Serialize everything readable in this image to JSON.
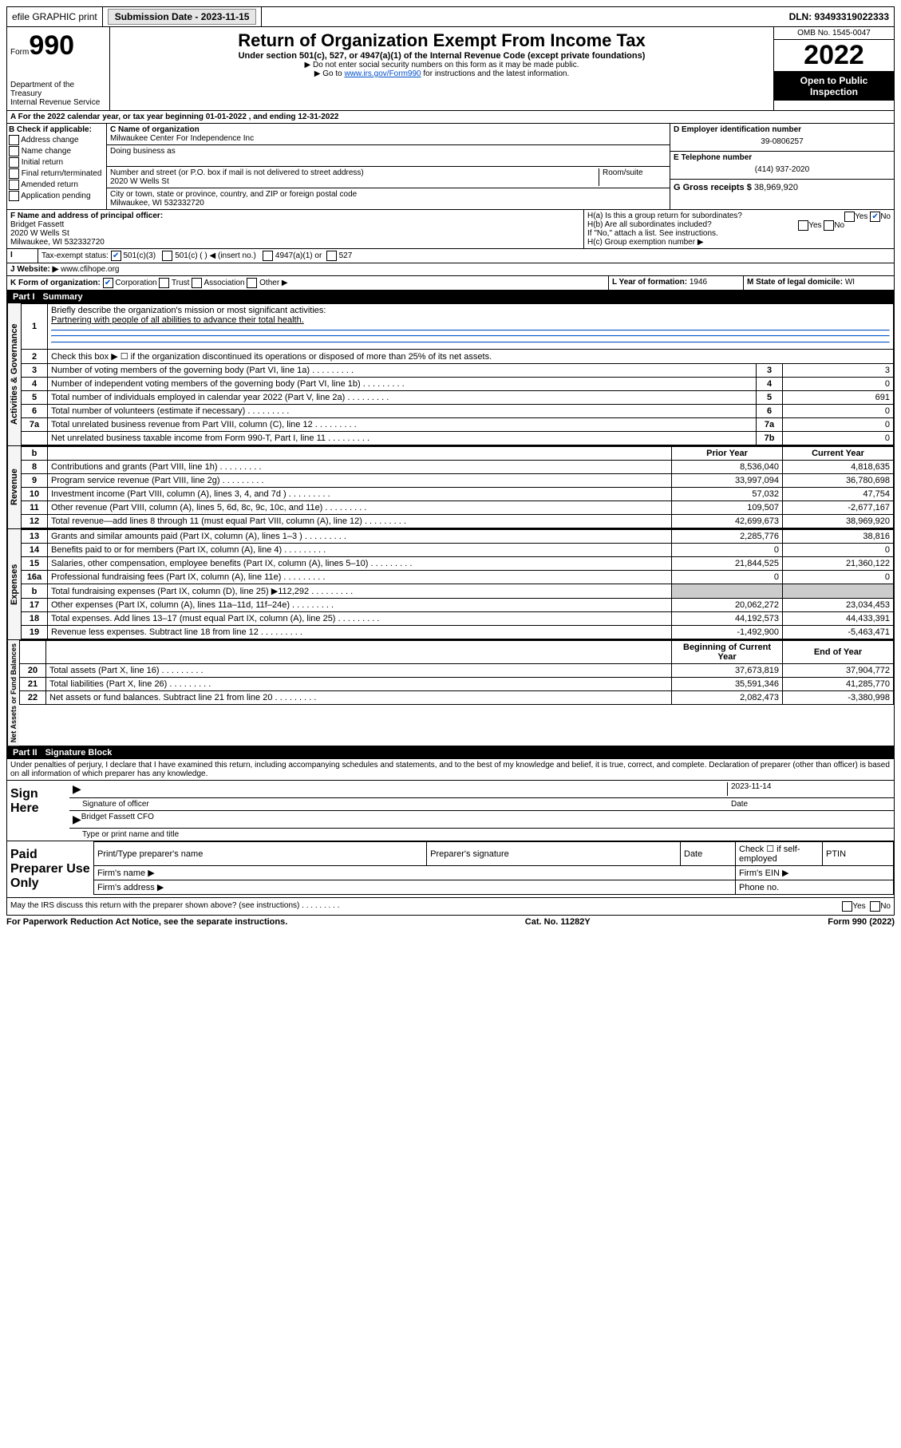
{
  "topbar": {
    "efile": "efile GRAPHIC print",
    "subdate_label": "Submission Date - 2023-11-15",
    "dln": "DLN: 93493319022333"
  },
  "header": {
    "form": "Form",
    "formno": "990",
    "dept": "Department of the Treasury",
    "irs": "Internal Revenue Service",
    "title": "Return of Organization Exempt From Income Tax",
    "subtitle": "Under section 501(c), 527, or 4947(a)(1) of the Internal Revenue Code (except private foundations)",
    "note1": "▶ Do not enter social security numbers on this form as it may be made public.",
    "note2_pre": "▶ Go to ",
    "note2_link": "www.irs.gov/Form990",
    "note2_post": " for instructions and the latest information.",
    "omb": "OMB No. 1545-0047",
    "year": "2022",
    "open": "Open to Public Inspection"
  },
  "sectionA": {
    "text": "A For the 2022 calendar year, or tax year beginning 01-01-2022    , and ending 12-31-2022"
  },
  "blockB": {
    "hdr": "B Check if applicable:",
    "items": [
      "Address change",
      "Name change",
      "Initial return",
      "Final return/terminated",
      "Amended return",
      "Application pending"
    ]
  },
  "blockC": {
    "name_lbl": "C Name of organization",
    "name": "Milwaukee Center For Independence Inc",
    "dba_lbl": "Doing business as",
    "dba": "",
    "street_lbl": "Number and street (or P.O. box if mail is not delivered to street address)",
    "room_lbl": "Room/suite",
    "street": "2020 W Wells St",
    "city_lbl": "City or town, state or province, country, and ZIP or foreign postal code",
    "city": "Milwaukee, WI  532332720"
  },
  "blockD": {
    "lbl": "D Employer identification number",
    "val": "39-0806257"
  },
  "blockE": {
    "lbl": "E Telephone number",
    "val": "(414) 937-2020"
  },
  "blockG": {
    "lbl": "G Gross receipts $",
    "val": "38,969,920"
  },
  "blockF": {
    "lbl": "F Name and address of principal officer:",
    "name": "Bridget Fassett",
    "addr1": "2020 W Wells St",
    "addr2": "Milwaukee, WI  532332720"
  },
  "blockH": {
    "a": "H(a)  Is this a group return for subordinates?",
    "b": "H(b)  Are all subordinates included?",
    "bnote": "If \"No,\" attach a list. See instructions.",
    "c": "H(c)  Group exemption number ▶",
    "yes": "Yes",
    "no": "No"
  },
  "blockI": {
    "lbl": "Tax-exempt status:",
    "c3": "501(c)(3)",
    "c": "501(c) (  ) ◀ (insert no.)",
    "a1": "4947(a)(1) or",
    "s527": "527"
  },
  "blockJ": {
    "lbl": "J   Website: ▶",
    "val": "www.cfihope.org"
  },
  "blockK": {
    "lbl": "K Form of organization:",
    "corp": "Corporation",
    "trust": "Trust",
    "assoc": "Association",
    "other": "Other ▶"
  },
  "blockL": {
    "lbl": "L Year of formation:",
    "val": "1946"
  },
  "blockM": {
    "lbl": "M State of legal domicile:",
    "val": "WI"
  },
  "part1": {
    "hdr_num": "Part I",
    "hdr_title": "Summary",
    "side_gov": "Activities & Governance",
    "side_rev": "Revenue",
    "side_exp": "Expenses",
    "side_net": "Net Assets or Fund Balances",
    "l1": "Briefly describe the organization's mission or most significant activities:",
    "l1val": "Partnering with people of all abilities to advance their total health.",
    "l2": "Check this box ▶ ☐  if the organization discontinued its operations or disposed of more than 25% of its net assets.",
    "lines_gov": [
      {
        "n": "3",
        "t": "Number of voting members of the governing body (Part VI, line 1a)",
        "box": "3",
        "v": "3"
      },
      {
        "n": "4",
        "t": "Number of independent voting members of the governing body (Part VI, line 1b)",
        "box": "4",
        "v": "0"
      },
      {
        "n": "5",
        "t": "Total number of individuals employed in calendar year 2022 (Part V, line 2a)",
        "box": "5",
        "v": "691"
      },
      {
        "n": "6",
        "t": "Total number of volunteers (estimate if necessary)",
        "box": "6",
        "v": "0"
      },
      {
        "n": "7a",
        "t": "Total unrelated business revenue from Part VIII, column (C), line 12",
        "box": "7a",
        "v": "0"
      },
      {
        "n": "",
        "t": "Net unrelated business taxable income from Form 990-T, Part I, line 11",
        "box": "7b",
        "v": "0"
      }
    ],
    "yr_hdr": {
      "b": "b",
      "py": "Prior Year",
      "cy": "Current Year"
    },
    "lines_rev": [
      {
        "n": "8",
        "t": "Contributions and grants (Part VIII, line 1h)",
        "py": "8,536,040",
        "cy": "4,818,635"
      },
      {
        "n": "9",
        "t": "Program service revenue (Part VIII, line 2g)",
        "py": "33,997,094",
        "cy": "36,780,698"
      },
      {
        "n": "10",
        "t": "Investment income (Part VIII, column (A), lines 3, 4, and 7d )",
        "py": "57,032",
        "cy": "47,754"
      },
      {
        "n": "11",
        "t": "Other revenue (Part VIII, column (A), lines 5, 6d, 8c, 9c, 10c, and 11e)",
        "py": "109,507",
        "cy": "-2,677,167"
      },
      {
        "n": "12",
        "t": "Total revenue—add lines 8 through 11 (must equal Part VIII, column (A), line 12)",
        "py": "42,699,673",
        "cy": "38,969,920"
      }
    ],
    "lines_exp": [
      {
        "n": "13",
        "t": "Grants and similar amounts paid (Part IX, column (A), lines 1–3 )",
        "py": "2,285,776",
        "cy": "38,816"
      },
      {
        "n": "14",
        "t": "Benefits paid to or for members (Part IX, column (A), line 4)",
        "py": "0",
        "cy": "0"
      },
      {
        "n": "15",
        "t": "Salaries, other compensation, employee benefits (Part IX, column (A), lines 5–10)",
        "py": "21,844,525",
        "cy": "21,360,122"
      },
      {
        "n": "16a",
        "t": "Professional fundraising fees (Part IX, column (A), line 11e)",
        "py": "0",
        "cy": "0"
      },
      {
        "n": "b",
        "t": "Total fundraising expenses (Part IX, column (D), line 25) ▶112,292",
        "py": "",
        "cy": "",
        "shade": true
      },
      {
        "n": "17",
        "t": "Other expenses (Part IX, column (A), lines 11a–11d, 11f–24e)",
        "py": "20,062,272",
        "cy": "23,034,453"
      },
      {
        "n": "18",
        "t": "Total expenses. Add lines 13–17 (must equal Part IX, column (A), line 25)",
        "py": "44,192,573",
        "cy": "44,433,391"
      },
      {
        "n": "19",
        "t": "Revenue less expenses. Subtract line 18 from line 12",
        "py": "-1,492,900",
        "cy": "-5,463,471"
      }
    ],
    "net_hdr": {
      "by": "Beginning of Current Year",
      "ey": "End of Year"
    },
    "lines_net": [
      {
        "n": "20",
        "t": "Total assets (Part X, line 16)",
        "py": "37,673,819",
        "cy": "37,904,772"
      },
      {
        "n": "21",
        "t": "Total liabilities (Part X, line 26)",
        "py": "35,591,346",
        "cy": "41,285,770"
      },
      {
        "n": "22",
        "t": "Net assets or fund balances. Subtract line 21 from line 20",
        "py": "2,082,473",
        "cy": "-3,380,998"
      }
    ]
  },
  "part2": {
    "hdr_num": "Part II",
    "hdr_title": "Signature Block",
    "decl": "Under penalties of perjury, I declare that I have examined this return, including accompanying schedules and statements, and to the best of my knowledge and belief, it is true, correct, and complete. Declaration of preparer (other than officer) is based on all information of which preparer has any knowledge.",
    "sign_here": "Sign Here",
    "sig_officer": "Signature of officer",
    "sig_date": "Date",
    "sig_dateval": "2023-11-14",
    "officer_name": "Bridget Fassett CFO",
    "type_name": "Type or print name and title",
    "paid": "Paid Preparer Use Only",
    "prep_name": "Print/Type preparer's name",
    "prep_sig": "Preparer's signature",
    "prep_date": "Date",
    "prep_check": "Check ☐ if self-employed",
    "ptin": "PTIN",
    "firm_name": "Firm's name  ▶",
    "firm_ein": "Firm's EIN ▶",
    "firm_addr": "Firm's address ▶",
    "phone": "Phone no.",
    "discuss": "May the IRS discuss this return with the preparer shown above? (see instructions)",
    "yes": "Yes",
    "no": "No"
  },
  "footer": {
    "pra": "For Paperwork Reduction Act Notice, see the separate instructions.",
    "cat": "Cat. No. 11282Y",
    "form": "Form 990 (2022)"
  }
}
